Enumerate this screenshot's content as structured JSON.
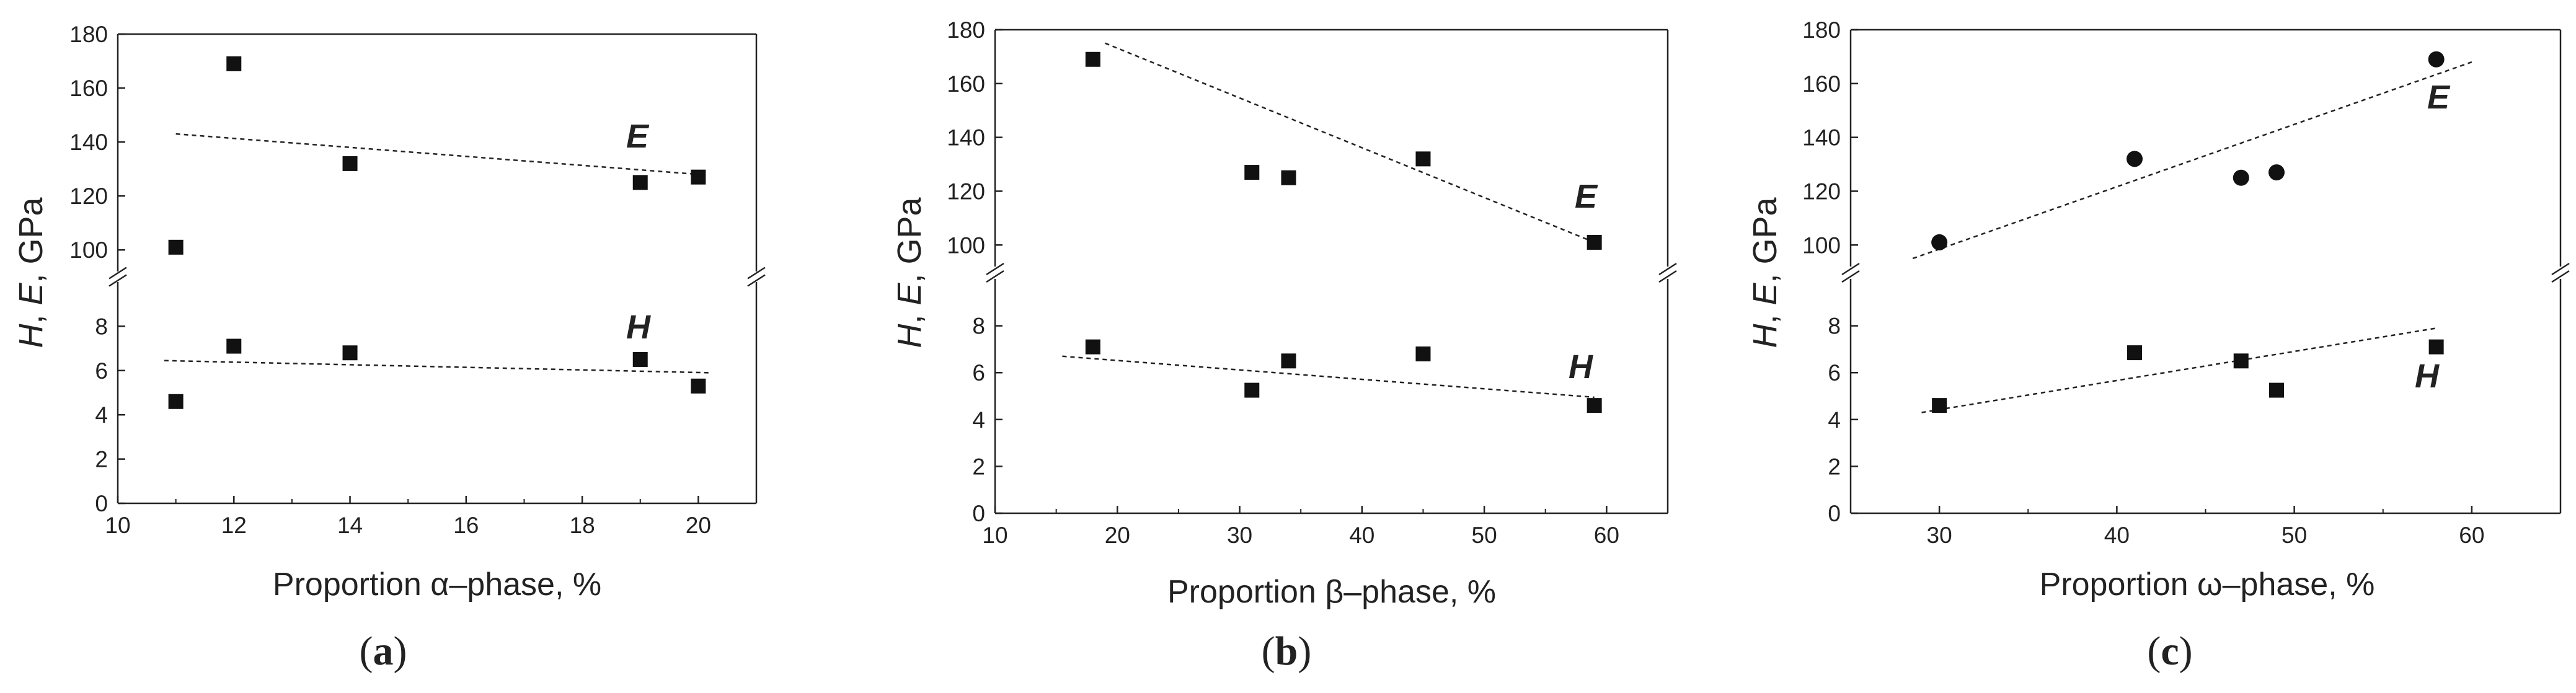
{
  "colors": {
    "axis": "#222222",
    "marker": "#111111",
    "background": "#ffffff"
  },
  "chart_data": [
    {
      "id": "a",
      "type": "scatter",
      "caption": "a",
      "xlabel": "Proportion α–phase, %",
      "ylabel_parts": [
        "H",
        ", ",
        "E",
        ", GPa"
      ],
      "xlim": [
        10,
        21
      ],
      "xticks": [
        10,
        12,
        14,
        16,
        18,
        20
      ],
      "ylim_top": [
        92,
        180
      ],
      "yticks_top": [
        100,
        120,
        140,
        160,
        180
      ],
      "ylim_bottom": [
        0,
        10
      ],
      "yticks_bottom": [
        0,
        2,
        4,
        6,
        8
      ],
      "marker": "square",
      "series": [
        {
          "name": "E",
          "axis": "top",
          "x": [
            11,
            12,
            14,
            19,
            20
          ],
          "y": [
            101,
            169,
            132,
            125,
            127
          ],
          "trend": {
            "x": [
              11,
              20
            ],
            "y": [
              143,
              128
            ]
          }
        },
        {
          "name": "H",
          "axis": "bottom",
          "x": [
            11,
            12,
            14,
            19,
            20
          ],
          "y": [
            4.6,
            7.1,
            6.8,
            6.5,
            5.3
          ],
          "trend": {
            "x": [
              10.8,
              20.2
            ],
            "y": [
              6.45,
              5.9
            ]
          }
        }
      ]
    },
    {
      "id": "b",
      "type": "scatter",
      "caption": "b",
      "xlabel": "Proportion β–phase, %",
      "ylabel_parts": [
        "H",
        ", ",
        "E",
        ", GPa"
      ],
      "xlim": [
        10,
        65
      ],
      "xticks": [
        10,
        20,
        30,
        40,
        50,
        60
      ],
      "ylim_top": [
        92,
        180
      ],
      "yticks_top": [
        100,
        120,
        140,
        160,
        180
      ],
      "ylim_bottom": [
        0,
        10
      ],
      "yticks_bottom": [
        0,
        2,
        4,
        6,
        8
      ],
      "marker": "square",
      "series": [
        {
          "name": "E",
          "axis": "top",
          "x": [
            18,
            31,
            34,
            45,
            59
          ],
          "y": [
            169,
            127,
            125,
            132,
            101
          ],
          "trend": {
            "x": [
              19,
              59
            ],
            "y": [
              175,
              101
            ]
          }
        },
        {
          "name": "H",
          "axis": "bottom",
          "x": [
            18,
            31,
            34,
            45,
            59
          ],
          "y": [
            7.1,
            5.25,
            6.5,
            6.8,
            4.6
          ],
          "trend": {
            "x": [
              15.5,
              59
            ],
            "y": [
              6.7,
              4.95
            ]
          }
        }
      ]
    },
    {
      "id": "c",
      "type": "scatter",
      "caption": "c",
      "xlabel": "Proportion ω–phase, %",
      "ylabel_parts": [
        "H",
        ", ",
        "E",
        ", GPa"
      ],
      "xlim": [
        25,
        65
      ],
      "xticks": [
        30,
        40,
        50,
        60
      ],
      "ylim_top": [
        92,
        180
      ],
      "yticks_top": [
        100,
        120,
        140,
        160,
        180
      ],
      "ylim_bottom": [
        0,
        10
      ],
      "yticks_bottom": [
        0,
        2,
        4,
        6,
        8
      ],
      "series": [
        {
          "name": "E",
          "axis": "top",
          "marker": "circle",
          "x": [
            30,
            41,
            47,
            49,
            58
          ],
          "y": [
            101,
            132,
            125,
            127,
            169
          ],
          "trend": {
            "x": [
              28.5,
              60
            ],
            "y": [
              95,
              168
            ]
          }
        },
        {
          "name": "H",
          "axis": "bottom",
          "marker": "square",
          "x": [
            30,
            41,
            47,
            49,
            58
          ],
          "y": [
            4.6,
            6.85,
            6.5,
            5.25,
            7.1
          ],
          "trend": {
            "x": [
              29,
              58
            ],
            "y": [
              4.3,
              7.9
            ]
          }
        }
      ]
    }
  ]
}
